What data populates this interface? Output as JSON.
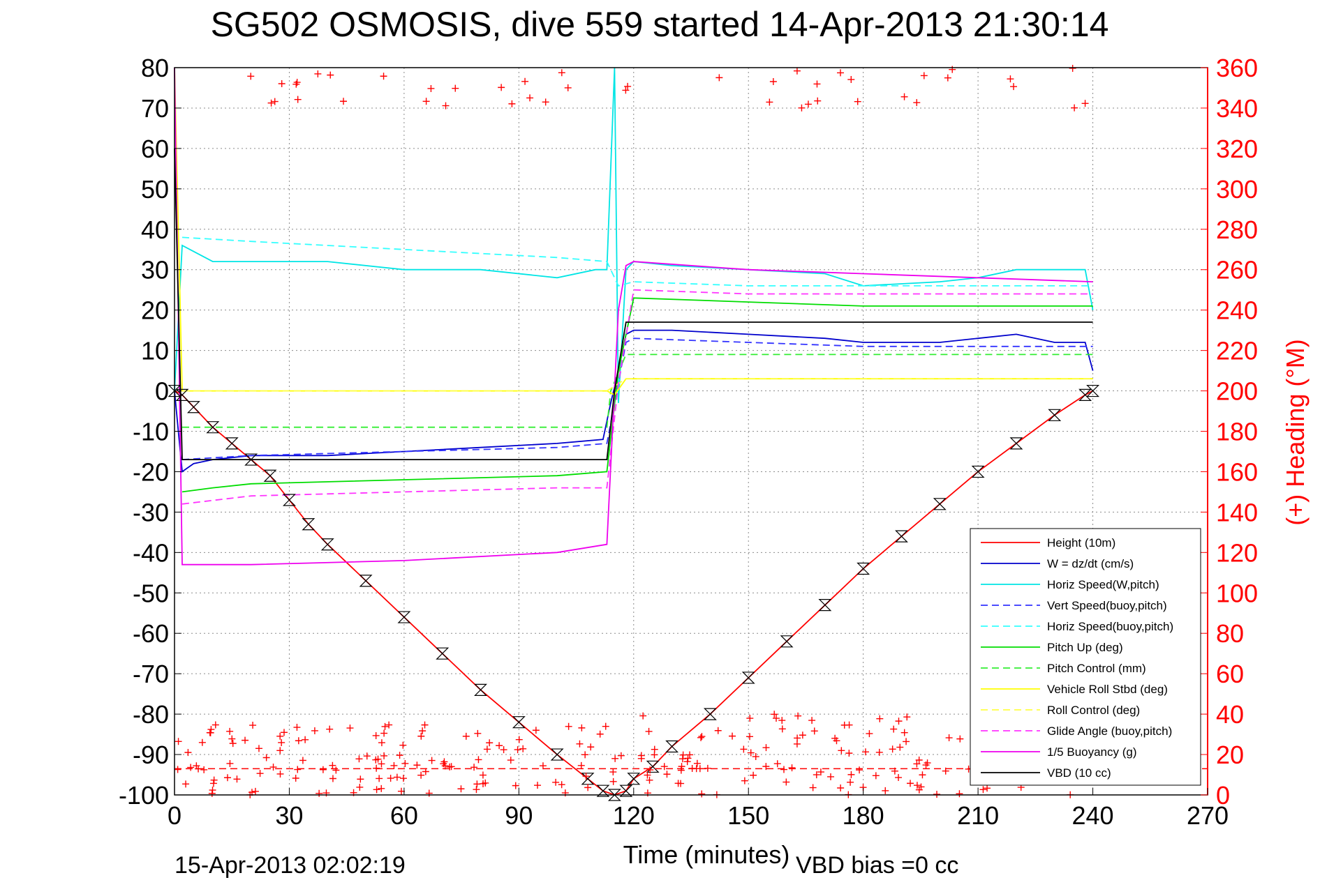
{
  "chart_data": {
    "type": "line",
    "title": "SG502 OSMOSIS, dive 559 started 14-Apr-2013 21:30:14",
    "xlabel": "Time (minutes)",
    "ylabel": "",
    "y2label": "(+) Heading (°M)",
    "xlim": [
      0,
      270
    ],
    "ylim": [
      -100,
      80
    ],
    "y2lim": [
      0,
      360
    ],
    "xticks": [
      "0",
      "30",
      "60",
      "90",
      "120",
      "150",
      "180",
      "210",
      "240",
      "270"
    ],
    "yticks": [
      "80",
      "70",
      "60",
      "50",
      "40",
      "30",
      "20",
      "10",
      "0",
      "-10",
      "-20",
      "-30",
      "-40",
      "-50",
      "-60",
      "-70",
      "-80",
      "-90",
      "-100"
    ],
    "y2ticks": [
      "360",
      "340",
      "320",
      "300",
      "280",
      "260",
      "240",
      "220",
      "200",
      "180",
      "160",
      "140",
      "120",
      "100",
      "80",
      "60",
      "40",
      "20",
      "0"
    ],
    "grid": true,
    "legend_position": "bottom-right",
    "footer_left": "15-Apr-2013 02:02:19",
    "footer_right": "VBD bias =0 cc",
    "colors": {
      "height": "#ff0000",
      "w": "#0000cc",
      "horiz_w": "#00e5e5",
      "vert_buoy": "#3333ff",
      "horiz_buoy": "#33ffff",
      "pitch": "#00dd00",
      "pitch_ctrl": "#33ee33",
      "roll": "#ffff00",
      "roll_ctrl": "#ffff44",
      "glide": "#ff33ff",
      "buoyancy": "#ee00ee",
      "vbd": "#000000",
      "heading": "#ff0000"
    },
    "series": [
      {
        "name": "Height (10m)",
        "style": "solid",
        "color": "#ff0000",
        "marker": "triangle",
        "x": [
          0,
          2,
          5,
          10,
          15,
          20,
          25,
          30,
          35,
          40,
          50,
          60,
          70,
          80,
          90,
          100,
          108,
          112,
          115,
          118,
          120,
          125,
          130,
          140,
          150,
          160,
          170,
          180,
          190,
          200,
          210,
          220,
          230,
          238,
          240
        ],
        "y": [
          0,
          -1,
          -4,
          -9,
          -13,
          -17,
          -21,
          -27,
          -33,
          -38,
          -47,
          -56,
          -65,
          -74,
          -82,
          -90,
          -96,
          -99,
          -100,
          -99,
          -96,
          -93,
          -88,
          -80,
          -71,
          -62,
          -53,
          -44,
          -36,
          -28,
          -20,
          -13,
          -6,
          -1,
          0
        ]
      },
      {
        "name": "W = dz/dt (cm/s)",
        "style": "solid",
        "color": "#0000cc",
        "x": [
          0,
          2,
          5,
          10,
          20,
          40,
          60,
          80,
          100,
          112,
          114,
          116,
          118,
          120,
          130,
          150,
          170,
          180,
          200,
          210,
          220,
          230,
          238,
          240
        ],
        "y": [
          0,
          -20,
          -18,
          -17,
          -16,
          -16,
          -15,
          -14,
          -13,
          -12,
          -3,
          5,
          14,
          15,
          15,
          14,
          13,
          12,
          12,
          13,
          14,
          12,
          12,
          5
        ]
      },
      {
        "name": "Horiz Speed(W,pitch)",
        "style": "solid",
        "color": "#00e5e5",
        "x": [
          0,
          2,
          10,
          20,
          40,
          60,
          80,
          100,
          110,
          113,
          115,
          116,
          118,
          120,
          130,
          150,
          170,
          180,
          200,
          210,
          220,
          230,
          238,
          240
        ],
        "y": [
          0,
          36,
          32,
          32,
          32,
          30,
          30,
          28,
          30,
          30,
          80,
          -3,
          30,
          32,
          31,
          30,
          29,
          26,
          27,
          28,
          30,
          30,
          30,
          20
        ]
      },
      {
        "name": "Vert Speed(buoy,pitch)",
        "style": "dashed",
        "color": "#3333ff",
        "x": [
          2,
          20,
          60,
          100,
          113,
          116,
          118,
          120,
          150,
          180,
          210,
          240
        ],
        "y": [
          -17,
          -16,
          -15,
          -14,
          -13,
          2,
          12,
          13,
          12,
          11,
          11,
          11
        ]
      },
      {
        "name": "Horiz Speed(buoy,pitch)",
        "style": "dashed",
        "color": "#33ffff",
        "x": [
          2,
          20,
          60,
          100,
          113,
          116,
          120,
          150,
          180,
          210,
          240
        ],
        "y": [
          38,
          37,
          35,
          33,
          32,
          26,
          27,
          26,
          26,
          26,
          26
        ]
      },
      {
        "name": "Pitch Up (deg)",
        "style": "solid",
        "color": "#00dd00",
        "x": [
          2,
          10,
          20,
          60,
          100,
          113,
          116,
          120,
          150,
          180,
          210,
          240
        ],
        "y": [
          -25,
          -24,
          -23,
          -22,
          -21,
          -20,
          5,
          23,
          22,
          21,
          21,
          21
        ]
      },
      {
        "name": "Pitch Control (mm)",
        "style": "dashed",
        "color": "#33ee33",
        "x": [
          2,
          113,
          114,
          118,
          240
        ],
        "y": [
          -9,
          -9,
          0,
          9,
          9
        ]
      },
      {
        "name": "Vehicle Roll Stbd (deg)",
        "style": "solid",
        "color": "#ffff00",
        "x": [
          0,
          2,
          10,
          30,
          60,
          90,
          113,
          115,
          118,
          120,
          150,
          180,
          210,
          240
        ],
        "y": [
          80,
          0,
          0,
          0,
          0,
          0,
          0,
          -1,
          3,
          3,
          3,
          3,
          3,
          3
        ]
      },
      {
        "name": "Roll Control (deg)",
        "style": "dashed",
        "color": "#ffff44",
        "x": [
          2,
          113,
          118,
          240
        ],
        "y": [
          0,
          0,
          3,
          3
        ]
      },
      {
        "name": "Glide Angle (buoy,pitch)",
        "style": "dashed",
        "color": "#ff33ff",
        "x": [
          2,
          20,
          60,
          100,
          113,
          116,
          120,
          150,
          180,
          210,
          240
        ],
        "y": [
          -28,
          -26,
          -25,
          -24,
          -24,
          2,
          25,
          24,
          24,
          24,
          24
        ]
      },
      {
        "name": "1/5 Buoyancy (g)",
        "style": "solid",
        "color": "#ee00ee",
        "x": [
          0,
          2,
          20,
          60,
          100,
          113,
          116,
          118,
          120,
          150,
          180,
          210,
          240
        ],
        "y": [
          80,
          -43,
          -43,
          -42,
          -40,
          -38,
          20,
          31,
          32,
          30,
          29,
          28,
          27
        ]
      },
      {
        "name": "VBD (10 cc)",
        "style": "solid",
        "color": "#000000",
        "x": [
          0,
          2,
          113,
          115,
          118,
          240
        ],
        "y": [
          60,
          -17,
          -17,
          0,
          17,
          17
        ]
      }
    ],
    "heading": {
      "name": "(+) Heading",
      "axis": "y2",
      "marker": "plus",
      "color": "#ff0000",
      "clusters": [
        {
          "x": [
            0,
            120
          ],
          "y": [
            0,
            35
          ]
        },
        {
          "x": [
            122,
            240
          ],
          "y": [
            0,
            40
          ]
        },
        {
          "x": [
            10,
            240
          ],
          "y": [
            340,
            360
          ]
        }
      ]
    },
    "heading_ref": {
      "style": "dashed",
      "color": "#ff0000",
      "y2": 13
    }
  }
}
